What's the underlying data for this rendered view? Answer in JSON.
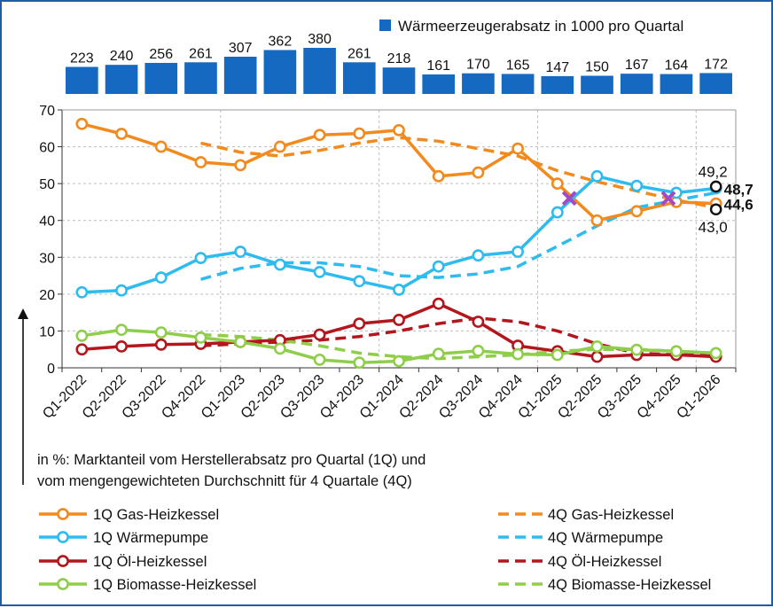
{
  "chart_data": [
    {
      "type": "bar",
      "legend_label": "Wärmeerzeugerabsatz in 1000 pro Quartal",
      "categories": [
        "Q1-2022",
        "Q2-2022",
        "Q3-2022",
        "Q4-2022",
        "Q1-2023",
        "Q2-2023",
        "Q3-2023",
        "Q4-2023",
        "Q1-2024",
        "Q2-2024",
        "Q3-2024",
        "Q4-2024",
        "Q1-2025",
        "Q2-2025",
        "Q3-2025",
        "Q4-2025",
        "Q1-2026"
      ],
      "values": [
        223,
        240,
        256,
        261,
        307,
        362,
        380,
        261,
        218,
        161,
        170,
        165,
        147,
        150,
        167,
        164,
        172
      ],
      "value_labels": [
        "223",
        "240",
        "256",
        "261",
        "307",
        "362",
        "380",
        "261",
        "218",
        "161",
        "170",
        "165",
        "147",
        "150",
        "167",
        "164",
        "172"
      ],
      "colors": {
        "bar_2022_2024": "#1669c1",
        "bar_from_Q2_2024": "#1669c1"
      }
    },
    {
      "type": "line",
      "categories": [
        "Q1-2022",
        "Q2-2022",
        "Q3-2022",
        "Q4-2022",
        "Q1-2023",
        "Q2-2023",
        "Q3-2023",
        "Q4-2023",
        "Q1-2024",
        "Q2-2024",
        "Q3-2024",
        "Q4-2024",
        "Q1-2025",
        "Q2-2025",
        "Q3-2025",
        "Q4-2025",
        "Q1-2026"
      ],
      "ylim": [
        0,
        70
      ],
      "yticks": [
        "0",
        "10",
        "20",
        "30",
        "40",
        "50",
        "60",
        "70"
      ],
      "ylabel": "in %: Marktanteil vom Herstellerabsatz pro Quartal (1Q) und",
      "ylabel_line2": "vom mengengewichteten  Durchschnitt für 4 Quartale (4Q)",
      "grid": true,
      "series": [
        {
          "name": "1Q Gas-Heizkessel",
          "color": "#f28a1e",
          "style": "solid",
          "markers": true,
          "values": [
            66.2,
            63.5,
            60.0,
            55.8,
            55.0,
            60.0,
            63.2,
            63.6,
            64.5,
            52.0,
            53.0,
            59.5,
            50.0,
            40.0,
            42.5,
            45.0,
            44.6
          ]
        },
        {
          "name": "1Q Wärmepumpe",
          "color": "#2ebbef",
          "style": "solid",
          "markers": true,
          "values": [
            20.5,
            21.0,
            24.5,
            29.8,
            31.5,
            28.0,
            26.0,
            23.5,
            21.2,
            27.5,
            30.5,
            31.5,
            42.2,
            52.0,
            49.4,
            47.5,
            48.7
          ]
        },
        {
          "name": "1Q Öl-Heizkessel",
          "color": "#b3161c",
          "style": "solid",
          "markers": true,
          "values": [
            5.0,
            5.8,
            6.3,
            6.5,
            7.0,
            7.5,
            9.0,
            12.0,
            13.0,
            17.4,
            12.5,
            6.0,
            4.5,
            3.0,
            3.5,
            3.5,
            3.0
          ]
        },
        {
          "name": "1Q Biomasse-Heizkessel",
          "color": "#8fce4a",
          "style": "solid",
          "markers": true,
          "values": [
            8.7,
            10.3,
            9.6,
            8.2,
            7.0,
            5.2,
            2.2,
            1.4,
            1.8,
            3.8,
            4.6,
            3.7,
            3.5,
            5.8,
            4.9,
            4.5,
            4.0
          ]
        },
        {
          "name": "4Q Gas-Heizkessel",
          "color": "#f28a1e",
          "style": "dashed",
          "markers": false,
          "values": [
            null,
            null,
            null,
            61.0,
            58.5,
            57.5,
            59.0,
            61.0,
            62.5,
            61.5,
            59.5,
            57.5,
            53.5,
            50.5,
            48.0,
            45.5,
            43.5
          ]
        },
        {
          "name": "4Q Wärmepumpe",
          "color": "#2ebbef",
          "style": "dashed",
          "markers": false,
          "values": [
            null,
            null,
            null,
            24.0,
            27.0,
            28.5,
            28.5,
            27.5,
            25.0,
            24.5,
            25.5,
            27.5,
            33.0,
            38.5,
            43.5,
            45.5,
            47.5
          ]
        },
        {
          "name": "4Q Öl-Heizkessel",
          "color": "#b3161c",
          "style": "dashed",
          "markers": false,
          "values": [
            null,
            null,
            null,
            6.0,
            6.5,
            7.0,
            7.5,
            8.5,
            10.0,
            12.0,
            13.5,
            12.5,
            10.0,
            6.5,
            4.0,
            3.5,
            3.5
          ]
        },
        {
          "name": "4Q Biomasse-Heizkessel",
          "color": "#8fce4a",
          "style": "dashed",
          "markers": false,
          "values": [
            null,
            null,
            null,
            9.0,
            8.5,
            7.5,
            6.0,
            4.0,
            3.0,
            2.5,
            3.0,
            3.5,
            4.5,
            5.0,
            5.0,
            4.5,
            4.0
          ]
        }
      ],
      "crossings": [
        {
          "x_index": 12.3,
          "y": 46.0,
          "color": "#a349c7"
        },
        {
          "x_index": 14.8,
          "y": 46.0,
          "color": "#a349c7"
        }
      ],
      "annotations": [
        {
          "text": "49,2",
          "color": "#111111",
          "x_index": 16,
          "y": 49.2,
          "pos": "above-left",
          "marker": true
        },
        {
          "text": "48,7",
          "color": "#2ebbef",
          "x_index": 16,
          "y": 48.7,
          "pos": "right",
          "marker": false
        },
        {
          "text": "44,6",
          "color": "#f28a1e",
          "x_index": 16,
          "y": 44.6,
          "pos": "right",
          "marker": false
        },
        {
          "text": "43,0",
          "color": "#111111",
          "x_index": 16,
          "y": 43.0,
          "pos": "below-left",
          "marker": true
        }
      ],
      "legend_placement": "bottom, two columns"
    }
  ]
}
